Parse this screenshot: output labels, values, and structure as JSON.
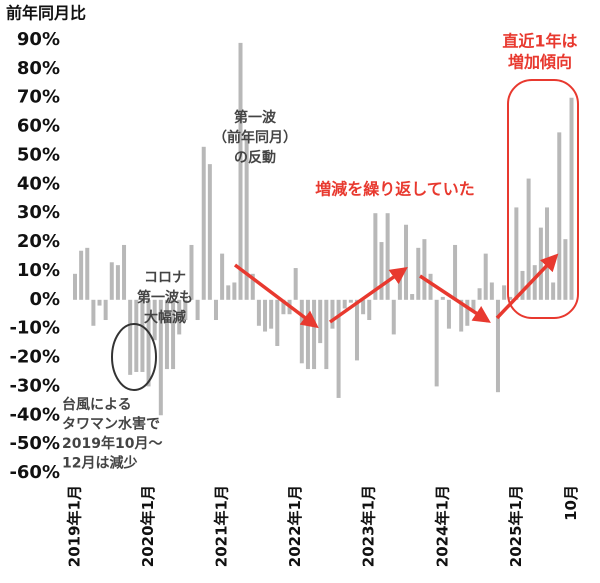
{
  "chart_data": {
    "type": "bar",
    "y_label": "前年同月比",
    "categories": [
      "2019年1月",
      null,
      null,
      null,
      null,
      null,
      null,
      null,
      null,
      null,
      null,
      null,
      "2020年1月",
      null,
      null,
      null,
      null,
      null,
      null,
      null,
      null,
      null,
      null,
      null,
      "2021年1月",
      null,
      null,
      null,
      null,
      null,
      null,
      null,
      null,
      null,
      null,
      null,
      "2022年1月",
      null,
      null,
      null,
      null,
      null,
      null,
      null,
      null,
      null,
      null,
      null,
      "2023年1月",
      null,
      null,
      null,
      null,
      null,
      null,
      null,
      null,
      null,
      null,
      null,
      "2024年1月",
      null,
      null,
      null,
      null,
      null,
      null,
      null,
      null,
      null,
      null,
      null,
      "2025年1月",
      null,
      null,
      null,
      null,
      null,
      null,
      null,
      null,
      "10月"
    ],
    "values": [
      9,
      17,
      18,
      -9,
      -2,
      -7,
      13,
      12,
      19,
      -26,
      -25,
      -25,
      -30,
      -14,
      -40,
      -24,
      -24,
      -12,
      -7,
      19,
      -7,
      53,
      47,
      -7,
      16,
      5,
      6,
      89,
      57,
      9,
      -9,
      -11,
      -10,
      -16,
      -5,
      -5,
      11,
      -22,
      -24,
      -24,
      -15,
      -24,
      -10,
      -34,
      -3,
      -1,
      -21,
      -5,
      -7,
      30,
      20,
      30,
      -12,
      8,
      26,
      2,
      18,
      21,
      9,
      -30,
      1,
      -10,
      19,
      -11,
      -9,
      -4,
      4,
      16,
      6,
      -32,
      5,
      1,
      32,
      10,
      42,
      12,
      25,
      32,
      6,
      58,
      21,
      70
    ],
    "color": "#b8b8b8",
    "ylim": [
      -60,
      90
    ],
    "yticks": [
      {
        "value": -60,
        "label": "-60%"
      },
      {
        "value": -50,
        "label": "-50%"
      },
      {
        "value": -40,
        "label": "-40%"
      },
      {
        "value": -30,
        "label": "-30%"
      },
      {
        "value": -20,
        "label": "-20%"
      },
      {
        "value": -10,
        "label": "-10%"
      },
      {
        "value": 0,
        "label": "0%"
      },
      {
        "value": 10,
        "label": "10%"
      },
      {
        "value": 20,
        "label": "20%"
      },
      {
        "value": 30,
        "label": "30%"
      },
      {
        "value": 40,
        "label": "40%"
      },
      {
        "value": 50,
        "label": "50%"
      },
      {
        "value": 60,
        "label": "60%"
      },
      {
        "value": 70,
        "label": "70%"
      },
      {
        "value": 80,
        "label": "80%"
      },
      {
        "value": 90,
        "label": "90%"
      }
    ],
    "grid": false,
    "annotations": [
      {
        "lines": [
          "コロナ",
          "第一波も",
          "大幅減"
        ]
      },
      {
        "lines": [
          "台風による",
          "タワマン水害で",
          "2019年10月〜",
          "12月は減少"
        ]
      },
      {
        "lines": [
          "第一波",
          "（前年同月）",
          "の反動"
        ]
      },
      {
        "lines": [
          "増減を繰り返していた"
        ]
      },
      {
        "lines": [
          "直近1年は",
          "増加傾向"
        ]
      }
    ]
  }
}
